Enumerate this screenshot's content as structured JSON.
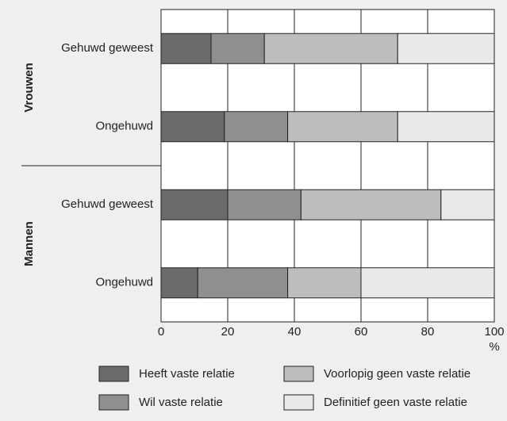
{
  "chart_data": {
    "type": "stacked_barh",
    "groups": [
      "Vrouwen",
      "Mannen"
    ],
    "categories": [
      "Gehuwd geweest",
      "Ongehuwd",
      "Gehuwd geweest",
      "Ongehuwd"
    ],
    "series": [
      {
        "name": "Heeft vaste relatie",
        "color": "#6b6b6b",
        "values": [
          15,
          19,
          20,
          11
        ]
      },
      {
        "name": "Wil vaste relatie",
        "color": "#8f8f8f",
        "values": [
          16,
          19,
          22,
          27
        ]
      },
      {
        "name": "Voorlopig geen vaste relatie",
        "color": "#bdbdbd",
        "values": [
          40,
          33,
          42,
          22
        ]
      },
      {
        "name": "Definitief geen vaste relatie",
        "color": "#e9e9e9",
        "values": [
          29,
          29,
          16,
          40
        ]
      }
    ],
    "xlabel": "%",
    "xlim": [
      0,
      100
    ],
    "xticks": [
      0,
      20,
      40,
      60,
      80,
      100
    ],
    "grid": true
  }
}
